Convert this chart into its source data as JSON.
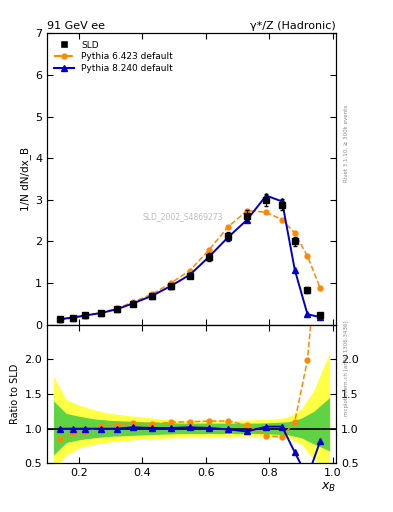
{
  "title_left": "91 GeV ee",
  "title_right": "γ*/Z (Hadronic)",
  "ylabel_main": "1/N dN/dx_B",
  "ylabel_ratio": "Ratio to SLD",
  "xlabel": "x_B",
  "right_label_top": "Rivet 3.1.10, ≥ 300k events",
  "right_label_bottom": "mcplots.cern.ch [arXiv:1306.3436]",
  "watermark": "SLD_2002_S4869273",
  "sld_x": [
    0.14,
    0.18,
    0.22,
    0.27,
    0.32,
    0.37,
    0.43,
    0.49,
    0.55,
    0.61,
    0.67,
    0.73,
    0.79,
    0.84,
    0.88,
    0.92,
    0.96
  ],
  "sld_y": [
    0.13,
    0.17,
    0.22,
    0.28,
    0.37,
    0.5,
    0.68,
    0.92,
    1.18,
    1.62,
    2.12,
    2.62,
    3.0,
    2.88,
    2.0,
    0.83,
    0.22
  ],
  "sld_yerr": [
    0.02,
    0.02,
    0.02,
    0.02,
    0.03,
    0.03,
    0.04,
    0.06,
    0.07,
    0.09,
    0.11,
    0.13,
    0.14,
    0.13,
    0.11,
    0.07,
    0.03
  ],
  "py6_x": [
    0.14,
    0.18,
    0.22,
    0.27,
    0.32,
    0.37,
    0.43,
    0.49,
    0.55,
    0.61,
    0.67,
    0.73,
    0.79,
    0.84,
    0.88,
    0.92,
    0.96
  ],
  "py6_y": [
    0.11,
    0.16,
    0.21,
    0.29,
    0.39,
    0.54,
    0.73,
    1.0,
    1.3,
    1.8,
    2.35,
    2.74,
    2.7,
    2.52,
    2.2,
    1.65,
    0.88
  ],
  "py8_x": [
    0.14,
    0.18,
    0.22,
    0.27,
    0.32,
    0.37,
    0.43,
    0.49,
    0.55,
    0.61,
    0.67,
    0.73,
    0.79,
    0.84,
    0.88,
    0.92,
    0.96
  ],
  "py8_y": [
    0.13,
    0.17,
    0.22,
    0.28,
    0.37,
    0.51,
    0.69,
    0.93,
    1.2,
    1.63,
    2.1,
    2.52,
    3.1,
    2.96,
    1.32,
    0.25,
    0.18
  ],
  "yellow_band_x": [
    0.12,
    0.16,
    0.2,
    0.25,
    0.3,
    0.35,
    0.4,
    0.46,
    0.52,
    0.58,
    0.64,
    0.7,
    0.76,
    0.82,
    0.86,
    0.9,
    0.94,
    0.99
  ],
  "yellow_band_lo": [
    0.4,
    0.62,
    0.72,
    0.78,
    0.81,
    0.83,
    0.85,
    0.86,
    0.87,
    0.88,
    0.88,
    0.89,
    0.89,
    0.88,
    0.86,
    0.78,
    0.55,
    0.35
  ],
  "yellow_band_hi": [
    1.75,
    1.42,
    1.34,
    1.27,
    1.22,
    1.19,
    1.17,
    1.14,
    1.12,
    1.12,
    1.12,
    1.12,
    1.13,
    1.14,
    1.17,
    1.28,
    1.55,
    2.1
  ],
  "green_band_x": [
    0.12,
    0.16,
    0.2,
    0.25,
    0.3,
    0.35,
    0.4,
    0.46,
    0.52,
    0.58,
    0.64,
    0.7,
    0.76,
    0.82,
    0.86,
    0.9,
    0.94,
    0.99
  ],
  "green_band_lo": [
    0.62,
    0.8,
    0.84,
    0.87,
    0.89,
    0.9,
    0.91,
    0.92,
    0.93,
    0.93,
    0.93,
    0.93,
    0.93,
    0.92,
    0.91,
    0.87,
    0.78,
    0.68
  ],
  "green_band_hi": [
    1.4,
    1.22,
    1.18,
    1.14,
    1.12,
    1.11,
    1.1,
    1.09,
    1.08,
    1.08,
    1.08,
    1.08,
    1.08,
    1.09,
    1.1,
    1.15,
    1.25,
    1.45
  ],
  "py6_ratio_x": [
    0.14,
    0.18,
    0.22,
    0.27,
    0.32,
    0.37,
    0.43,
    0.49,
    0.55,
    0.61,
    0.67,
    0.73,
    0.79,
    0.84,
    0.88,
    0.92,
    0.96
  ],
  "py6_ratio_y": [
    0.85,
    0.94,
    0.95,
    1.04,
    1.05,
    1.08,
    1.07,
    1.09,
    1.1,
    1.11,
    1.11,
    1.05,
    0.9,
    0.88,
    1.1,
    1.99,
    4.0
  ],
  "py8_ratio_x": [
    0.14,
    0.18,
    0.22,
    0.27,
    0.32,
    0.37,
    0.43,
    0.49,
    0.55,
    0.61,
    0.67,
    0.73,
    0.79,
    0.84,
    0.88,
    0.92,
    0.96
  ],
  "py8_ratio_y": [
    1.0,
    1.0,
    1.0,
    1.0,
    1.0,
    1.02,
    1.01,
    1.01,
    1.02,
    1.01,
    0.99,
    0.96,
    1.03,
    1.03,
    0.66,
    0.3,
    0.82
  ],
  "sld_color": "#000000",
  "py6_color": "#ff8800",
  "py8_color": "#0000cc",
  "yellow_color": "#ffff44",
  "green_color": "#44cc44",
  "main_ylim": [
    0,
    7
  ],
  "ratio_ylim": [
    0.5,
    2.5
  ],
  "xlim": [
    0.1,
    1.01
  ],
  "main_yticks": [
    0,
    1,
    2,
    3,
    4,
    5,
    6,
    7
  ],
  "ratio_yticks": [
    0.5,
    1.0,
    1.5,
    2.0
  ]
}
